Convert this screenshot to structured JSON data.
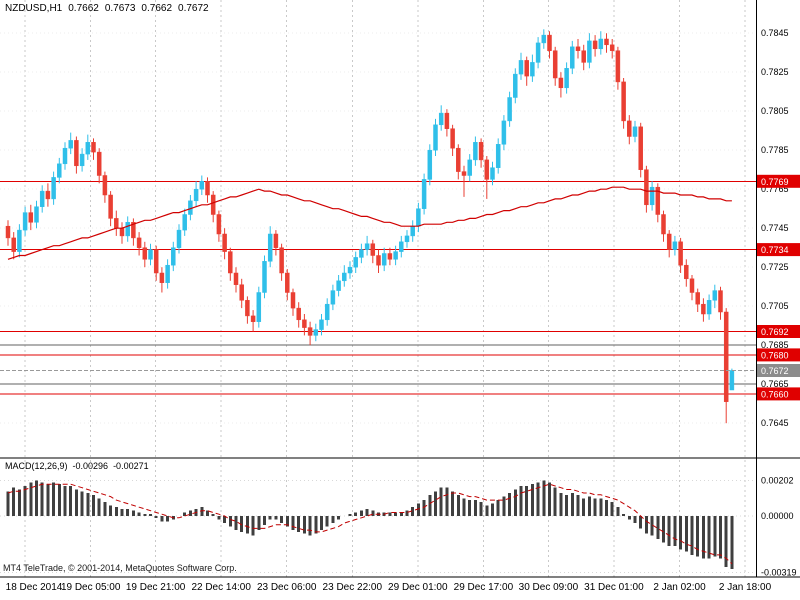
{
  "header": {
    "symbol_period": "NZDUSD,H1",
    "open": "0.7662",
    "high": "0.7673",
    "low": "0.7662",
    "close": "0.7672"
  },
  "macd_label": {
    "name": "MACD(12,26,9)",
    "value": "-0.00296",
    "signal": "-0.00271"
  },
  "footer": {
    "copyright": "MT4 TeleTrade, © 2001-2014, MetaQuotes Software Corp."
  },
  "colors": {
    "background": "#FFFFFF",
    "bull": "#2FBFE9",
    "bear": "#E93F33",
    "ma": "#D00000",
    "level_red": "#E00000",
    "level_gray": "#606060",
    "current_line": "#999999",
    "current_tag_bg": "#8C8C8C",
    "hist": "#3F3F3F",
    "signal": "#C00000",
    "grid": "#C9C9C9",
    "separator": "#000000"
  },
  "chart_data": {
    "type": "candlestick",
    "title": "NZDUSD,H1",
    "symbol": "NZDUSD",
    "timeframe": "H1",
    "current_ohlc": {
      "open": 0.7662,
      "high": 0.7673,
      "low": 0.7662,
      "close": 0.7672
    },
    "y_axis": {
      "ticks": [
        0.7845,
        0.7825,
        0.7805,
        0.7785,
        0.7765,
        0.7745,
        0.7725,
        0.7705,
        0.7685,
        0.7665,
        0.7645
      ],
      "range": [
        0.7628,
        0.7862
      ],
      "decimals": 4,
      "grid": "dotted"
    },
    "x_axis": {
      "labels": [
        "18 Dec 2014",
        "19 Dec 05:00",
        "19 Dec 21:00",
        "22 Dec 14:00",
        "23 Dec 06:00",
        "23 Dec 22:00",
        "29 Dec 01:00",
        "29 Dec 17:00",
        "30 Dec 09:00",
        "31 Dec 01:00",
        "2 Jan 02:00",
        "2 Jan 18:00"
      ],
      "label_positions": [
        3,
        14.5,
        25.9,
        37.4,
        48.9,
        60.4,
        71.9,
        83.4,
        94.8,
        106.3,
        117.8,
        129.3
      ],
      "grid": "dashed-vertical"
    },
    "horizontal_levels": {
      "red": [
        0.7769,
        0.7734,
        0.7692,
        0.768,
        0.766
      ],
      "gray": [
        0.7685,
        0.7665
      ],
      "current_price": 0.7672
    },
    "candles": [
      [
        0.7746,
        0.7749,
        0.7736,
        0.774
      ],
      [
        0.774,
        0.7743,
        0.7729,
        0.7733
      ],
      [
        0.7733,
        0.7747,
        0.773,
        0.7744
      ],
      [
        0.7744,
        0.7756,
        0.7741,
        0.7753
      ],
      [
        0.7753,
        0.7757,
        0.7744,
        0.7748
      ],
      [
        0.7748,
        0.7759,
        0.7745,
        0.7756
      ],
      [
        0.7756,
        0.7767,
        0.7753,
        0.7764
      ],
      [
        0.7764,
        0.7768,
        0.7756,
        0.776
      ],
      [
        0.776,
        0.7774,
        0.7757,
        0.7771
      ],
      [
        0.7771,
        0.7781,
        0.7768,
        0.7778
      ],
      [
        0.7778,
        0.7789,
        0.7775,
        0.7786
      ],
      [
        0.7786,
        0.7794,
        0.7783,
        0.779
      ],
      [
        0.779,
        0.7792,
        0.7773,
        0.7777
      ],
      [
        0.7777,
        0.7786,
        0.7774,
        0.7783
      ],
      [
        0.7783,
        0.7793,
        0.778,
        0.7789
      ],
      [
        0.7789,
        0.7791,
        0.778,
        0.7784
      ],
      [
        0.7784,
        0.7786,
        0.7768,
        0.7772
      ],
      [
        0.7772,
        0.7774,
        0.7758,
        0.7762
      ],
      [
        0.7762,
        0.7764,
        0.7746,
        0.775
      ],
      [
        0.775,
        0.7754,
        0.7741,
        0.7745
      ],
      [
        0.7745,
        0.7748,
        0.7737,
        0.7741
      ],
      [
        0.7741,
        0.7751,
        0.7738,
        0.7748
      ],
      [
        0.7748,
        0.775,
        0.7736,
        0.774
      ],
      [
        0.774,
        0.7743,
        0.7731,
        0.7735
      ],
      [
        0.7735,
        0.7738,
        0.7725,
        0.7729
      ],
      [
        0.7729,
        0.7737,
        0.7726,
        0.7734
      ],
      [
        0.7734,
        0.7736,
        0.7718,
        0.7722
      ],
      [
        0.7722,
        0.7725,
        0.7712,
        0.7717
      ],
      [
        0.7717,
        0.7729,
        0.7714,
        0.7726
      ],
      [
        0.7726,
        0.7738,
        0.7723,
        0.7735
      ],
      [
        0.7735,
        0.7747,
        0.7732,
        0.7744
      ],
      [
        0.7744,
        0.7755,
        0.7741,
        0.7752
      ],
      [
        0.7752,
        0.7762,
        0.7749,
        0.7759
      ],
      [
        0.7759,
        0.7769,
        0.7756,
        0.7765
      ],
      [
        0.7765,
        0.7772,
        0.7762,
        0.7769
      ],
      [
        0.7769,
        0.7771,
        0.7758,
        0.7762
      ],
      [
        0.7762,
        0.7764,
        0.7748,
        0.7752
      ],
      [
        0.7752,
        0.7754,
        0.7738,
        0.7742
      ],
      [
        0.7742,
        0.7745,
        0.7729,
        0.7733
      ],
      [
        0.7733,
        0.7735,
        0.7718,
        0.7722
      ],
      [
        0.7722,
        0.7725,
        0.7712,
        0.7716
      ],
      [
        0.7716,
        0.7719,
        0.7704,
        0.7708
      ],
      [
        0.7708,
        0.771,
        0.7696,
        0.77
      ],
      [
        0.77,
        0.7703,
        0.7692,
        0.7697
      ],
      [
        0.7697,
        0.7715,
        0.7694,
        0.7712
      ],
      [
        0.7712,
        0.7731,
        0.7709,
        0.7728
      ],
      [
        0.7728,
        0.7746,
        0.7725,
        0.7742
      ],
      [
        0.7742,
        0.7744,
        0.7731,
        0.7735
      ],
      [
        0.7735,
        0.7737,
        0.7718,
        0.7722
      ],
      [
        0.7722,
        0.7724,
        0.7708,
        0.7712
      ],
      [
        0.7712,
        0.7714,
        0.77,
        0.7704
      ],
      [
        0.7704,
        0.7707,
        0.7694,
        0.7698
      ],
      [
        0.7698,
        0.7701,
        0.769,
        0.7694
      ],
      [
        0.7694,
        0.7697,
        0.7685,
        0.769
      ],
      [
        0.769,
        0.7696,
        0.7687,
        0.7693
      ],
      [
        0.7693,
        0.7701,
        0.769,
        0.7698
      ],
      [
        0.7698,
        0.7709,
        0.7695,
        0.7706
      ],
      [
        0.7706,
        0.7716,
        0.7703,
        0.7713
      ],
      [
        0.7713,
        0.7721,
        0.771,
        0.7718
      ],
      [
        0.7718,
        0.7726,
        0.7715,
        0.7722
      ],
      [
        0.7722,
        0.7728,
        0.7719,
        0.7725
      ],
      [
        0.7725,
        0.7733,
        0.7722,
        0.773
      ],
      [
        0.773,
        0.7737,
        0.7727,
        0.7734
      ],
      [
        0.7734,
        0.7741,
        0.7731,
        0.7737
      ],
      [
        0.7737,
        0.7739,
        0.7727,
        0.7731
      ],
      [
        0.7731,
        0.7734,
        0.7722,
        0.7726
      ],
      [
        0.7726,
        0.7735,
        0.7723,
        0.7732
      ],
      [
        0.7732,
        0.7735,
        0.7726,
        0.7729
      ],
      [
        0.7729,
        0.7736,
        0.7726,
        0.7733
      ],
      [
        0.7733,
        0.7741,
        0.773,
        0.7738
      ],
      [
        0.7738,
        0.7744,
        0.7735,
        0.7741
      ],
      [
        0.7741,
        0.7749,
        0.7738,
        0.7746
      ],
      [
        0.7746,
        0.7758,
        0.7743,
        0.7755
      ],
      [
        0.7755,
        0.7773,
        0.7752,
        0.777
      ],
      [
        0.777,
        0.7788,
        0.7767,
        0.7785
      ],
      [
        0.7785,
        0.7801,
        0.7782,
        0.7798
      ],
      [
        0.7798,
        0.7808,
        0.7795,
        0.7804
      ],
      [
        0.7804,
        0.7806,
        0.7792,
        0.7796
      ],
      [
        0.7796,
        0.7798,
        0.7782,
        0.7786
      ],
      [
        0.7786,
        0.7788,
        0.777,
        0.7774
      ],
      [
        0.7774,
        0.7777,
        0.7761,
        0.7772
      ],
      [
        0.7772,
        0.7783,
        0.7769,
        0.778
      ],
      [
        0.778,
        0.7792,
        0.7777,
        0.7789
      ],
      [
        0.7789,
        0.7791,
        0.7776,
        0.778
      ],
      [
        0.778,
        0.7782,
        0.776,
        0.777
      ],
      [
        0.777,
        0.7779,
        0.7767,
        0.7776
      ],
      [
        0.7776,
        0.7791,
        0.7773,
        0.7788
      ],
      [
        0.7788,
        0.7803,
        0.7785,
        0.78
      ],
      [
        0.78,
        0.7815,
        0.7797,
        0.7812
      ],
      [
        0.7812,
        0.7827,
        0.7809,
        0.7824
      ],
      [
        0.7824,
        0.7835,
        0.7821,
        0.7831
      ],
      [
        0.7831,
        0.7833,
        0.7818,
        0.7823
      ],
      [
        0.7823,
        0.7834,
        0.782,
        0.783
      ],
      [
        0.783,
        0.7843,
        0.7827,
        0.784
      ],
      [
        0.784,
        0.7847,
        0.7837,
        0.7844
      ],
      [
        0.7844,
        0.7846,
        0.7832,
        0.7836
      ],
      [
        0.7836,
        0.7838,
        0.7818,
        0.7822
      ],
      [
        0.7822,
        0.7825,
        0.7812,
        0.7817
      ],
      [
        0.7817,
        0.783,
        0.7814,
        0.7827
      ],
      [
        0.7827,
        0.7841,
        0.7824,
        0.7838
      ],
      [
        0.7838,
        0.7842,
        0.7832,
        0.7836
      ],
      [
        0.7836,
        0.7839,
        0.7826,
        0.783
      ],
      [
        0.783,
        0.7845,
        0.7827,
        0.7841
      ],
      [
        0.7841,
        0.7844,
        0.7833,
        0.7837
      ],
      [
        0.7837,
        0.7846,
        0.7834,
        0.7842
      ],
      [
        0.7842,
        0.7845,
        0.7835,
        0.7839
      ],
      [
        0.7839,
        0.7842,
        0.7832,
        0.7836
      ],
      [
        0.7836,
        0.7838,
        0.7816,
        0.782
      ],
      [
        0.782,
        0.7822,
        0.7796,
        0.78
      ],
      [
        0.78,
        0.7803,
        0.7788,
        0.7792
      ],
      [
        0.7792,
        0.78,
        0.7789,
        0.7797
      ],
      [
        0.7797,
        0.7799,
        0.7771,
        0.7775
      ],
      [
        0.7775,
        0.7777,
        0.7753,
        0.7757
      ],
      [
        0.7757,
        0.7769,
        0.7754,
        0.7766
      ],
      [
        0.7766,
        0.7768,
        0.7748,
        0.7752
      ],
      [
        0.7752,
        0.7754,
        0.7738,
        0.7742
      ],
      [
        0.7742,
        0.7744,
        0.773,
        0.7734
      ],
      [
        0.7734,
        0.7741,
        0.7731,
        0.7738
      ],
      [
        0.7738,
        0.774,
        0.7722,
        0.7726
      ],
      [
        0.7726,
        0.7729,
        0.7715,
        0.7719
      ],
      [
        0.7719,
        0.7721,
        0.7708,
        0.7712
      ],
      [
        0.7712,
        0.7714,
        0.7702,
        0.7706
      ],
      [
        0.7706,
        0.7709,
        0.7697,
        0.7701
      ],
      [
        0.7701,
        0.7711,
        0.7698,
        0.7708
      ],
      [
        0.7708,
        0.7716,
        0.7704,
        0.7713
      ],
      [
        0.7713,
        0.7715,
        0.7698,
        0.7702
      ],
      [
        0.7702,
        0.7704,
        0.7645,
        0.7656
      ],
      [
        0.7662,
        0.7673,
        0.7662,
        0.7672
      ]
    ],
    "ma_line": [
      0.7729,
      0.773,
      0.7731,
      0.7731,
      0.7732,
      0.7733,
      0.7734,
      0.7735,
      0.7736,
      0.7736,
      0.7737,
      0.7738,
      0.7739,
      0.774,
      0.774,
      0.7741,
      0.7742,
      0.7743,
      0.7744,
      0.7745,
      0.7745,
      0.7746,
      0.7747,
      0.7748,
      0.7749,
      0.7749,
      0.775,
      0.7751,
      0.7752,
      0.7753,
      0.7753,
      0.7754,
      0.7755,
      0.7756,
      0.7757,
      0.7757,
      0.7758,
      0.7759,
      0.776,
      0.7761,
      0.7761,
      0.7762,
      0.7763,
      0.7764,
      0.7765,
      0.7764,
      0.7764,
      0.7763,
      0.7762,
      0.7762,
      0.7761,
      0.776,
      0.7759,
      0.7759,
      0.7758,
      0.7757,
      0.7756,
      0.7755,
      0.7755,
      0.7754,
      0.7753,
      0.7752,
      0.7751,
      0.7751,
      0.775,
      0.7749,
      0.7748,
      0.7748,
      0.7747,
      0.7746,
      0.7746,
      0.7746,
      0.7746,
      0.7747,
      0.7747,
      0.7747,
      0.7747,
      0.7748,
      0.7748,
      0.7749,
      0.7749,
      0.775,
      0.775,
      0.7751,
      0.7752,
      0.7752,
      0.7753,
      0.7754,
      0.7754,
      0.7755,
      0.7756,
      0.7756,
      0.7757,
      0.7758,
      0.7758,
      0.7759,
      0.776,
      0.776,
      0.7761,
      0.7762,
      0.7762,
      0.7763,
      0.7764,
      0.7764,
      0.7765,
      0.7765,
      0.7766,
      0.7766,
      0.7766,
      0.7765,
      0.7765,
      0.7765,
      0.7764,
      0.7764,
      0.7764,
      0.7763,
      0.7763,
      0.7763,
      0.7762,
      0.7762,
      0.7762,
      0.7761,
      0.7761,
      0.776,
      0.776,
      0.776,
      0.7759,
      0.7759
    ],
    "indicator": {
      "name": "MACD",
      "params": "12,26,9",
      "label": "MACD(12,26,9)",
      "value": -0.00296,
      "signal_value": -0.00271,
      "axis_labels": [
        "0.00202",
        "0.00000",
        "-0.00319"
      ],
      "axis_values": [
        0.00202,
        0,
        -0.00319
      ],
      "histogram": [
        0.0014,
        0.0016,
        0.0015,
        0.0017,
        0.0019,
        0.002,
        0.0019,
        0.0018,
        0.0019,
        0.0018,
        0.0017,
        0.0017,
        0.0015,
        0.0014,
        0.0013,
        0.0012,
        0.001,
        0.0008,
        0.0006,
        0.0005,
        0.0004,
        0.0004,
        0.0003,
        0.0002,
        0.0001,
        0.0001,
        -0.0001,
        -0.0003,
        -0.0003,
        -0.0002,
        0.0,
        0.0002,
        0.0003,
        0.0004,
        0.0005,
        0.0003,
        0.0001,
        -0.0002,
        -0.0004,
        -0.0006,
        -0.0008,
        -0.0009,
        -0.001,
        -0.0011,
        -0.0008,
        -0.0005,
        -0.0002,
        -0.0002,
        -0.0004,
        -0.0006,
        -0.0008,
        -0.0009,
        -0.001,
        -0.0011,
        -0.001,
        -0.0008,
        -0.0006,
        -0.0004,
        -0.0002,
        0.0,
        0.0001,
        0.0002,
        0.0003,
        0.0004,
        0.0003,
        0.0002,
        0.0002,
        0.0002,
        0.0002,
        0.0002,
        0.0003,
        0.0005,
        0.0007,
        0.0009,
        0.0012,
        0.0014,
        0.0016,
        0.0016,
        0.0014,
        0.0012,
        0.001,
        0.0009,
        0.0009,
        0.0008,
        0.0006,
        0.0007,
        0.0009,
        0.0011,
        0.0013,
        0.0015,
        0.0017,
        0.0017,
        0.0018,
        0.0019,
        0.002,
        0.0019,
        0.0016,
        0.0013,
        0.0012,
        0.0013,
        0.0012,
        0.001,
        0.0011,
        0.001,
        0.001,
        0.0009,
        0.0008,
        0.0005,
        0.0001,
        -0.0002,
        -0.0004,
        -0.0007,
        -0.001,
        -0.0011,
        -0.0013,
        -0.0015,
        -0.0017,
        -0.0017,
        -0.0019,
        -0.002,
        -0.0022,
        -0.0023,
        -0.0024,
        -0.0024,
        -0.0023,
        -0.0024,
        -0.0029,
        -0.003
      ],
      "signal": [
        0.0013,
        0.0014,
        0.0014,
        0.0015,
        0.0016,
        0.0017,
        0.0018,
        0.0018,
        0.0018,
        0.0018,
        0.0018,
        0.0018,
        0.0017,
        0.0016,
        0.0015,
        0.0014,
        0.0013,
        0.0012,
        0.0011,
        0.0009,
        0.0008,
        0.0007,
        0.0006,
        0.0005,
        0.0004,
        0.0003,
        0.0002,
        0.0001,
        0.0,
        -0.0001,
        -0.0001,
        0.0,
        0.0001,
        0.0002,
        0.0003,
        0.0003,
        0.0002,
        0.0001,
        0.0,
        -0.0002,
        -0.0003,
        -0.0005,
        -0.0006,
        -0.0007,
        -0.0007,
        -0.0007,
        -0.0006,
        -0.0005,
        -0.0005,
        -0.0005,
        -0.0006,
        -0.0007,
        -0.0008,
        -0.0008,
        -0.0009,
        -0.0009,
        -0.0008,
        -0.0007,
        -0.0006,
        -0.0004,
        -0.0003,
        -0.0002,
        -0.0001,
        0.0,
        0.0001,
        0.0001,
        0.0001,
        0.0002,
        0.0002,
        0.0002,
        0.0002,
        0.0003,
        0.0004,
        0.0005,
        0.0007,
        0.0009,
        0.0011,
        0.0012,
        0.0013,
        0.0013,
        0.0012,
        0.0011,
        0.0011,
        0.001,
        0.0009,
        0.0009,
        0.0009,
        0.0009,
        0.001,
        0.0011,
        0.0013,
        0.0014,
        0.0015,
        0.0016,
        0.0017,
        0.0018,
        0.0017,
        0.0016,
        0.0015,
        0.0015,
        0.0014,
        0.0013,
        0.0013,
        0.0012,
        0.0012,
        0.0011,
        0.001,
        0.0009,
        0.0007,
        0.0005,
        0.0003,
        0.0,
        -0.0003,
        -0.0005,
        -0.0007,
        -0.0009,
        -0.0011,
        -0.0013,
        -0.0014,
        -0.0016,
        -0.0017,
        -0.0019,
        -0.002,
        -0.0021,
        -0.0022,
        -0.0022,
        -0.0024,
        -0.0027
      ]
    }
  }
}
